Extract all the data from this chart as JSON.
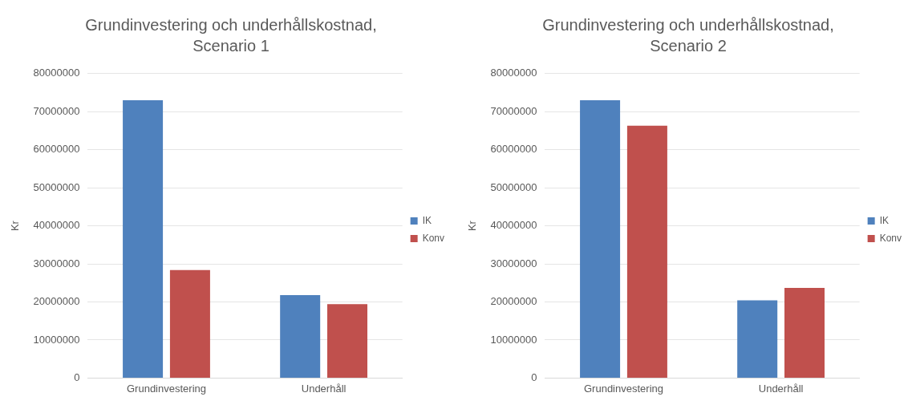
{
  "chart_data": [
    {
      "type": "bar",
      "title": "Grundinvestering och underhållskostnad, Scenario 1",
      "ylabel": "Kr",
      "categories": [
        "Grundinvestering",
        "Underhåll"
      ],
      "series": [
        {
          "name": "IK",
          "color": "#4f81bd",
          "values": [
            73000000,
            21800000
          ]
        },
        {
          "name": "Konv",
          "color": "#c0504d",
          "values": [
            28400000,
            19400000
          ]
        }
      ],
      "ylim": [
        0,
        80000000
      ],
      "yticks": [
        0,
        10000000,
        20000000,
        30000000,
        40000000,
        50000000,
        60000000,
        70000000,
        80000000
      ],
      "grid": "y",
      "legend": "right"
    },
    {
      "type": "bar",
      "title": "Grundinvestering och underhållskostnad, Scenario 2",
      "ylabel": "Kr",
      "categories": [
        "Grundinvestering",
        "Underhåll"
      ],
      "series": [
        {
          "name": "IK",
          "color": "#4f81bd",
          "values": [
            73000000,
            20400000
          ]
        },
        {
          "name": "Konv",
          "color": "#c0504d",
          "values": [
            66300000,
            23700000
          ]
        }
      ],
      "ylim": [
        0,
        80000000
      ],
      "yticks": [
        0,
        10000000,
        20000000,
        30000000,
        40000000,
        50000000,
        60000000,
        70000000,
        80000000
      ],
      "grid": "y",
      "legend": "right"
    }
  ]
}
